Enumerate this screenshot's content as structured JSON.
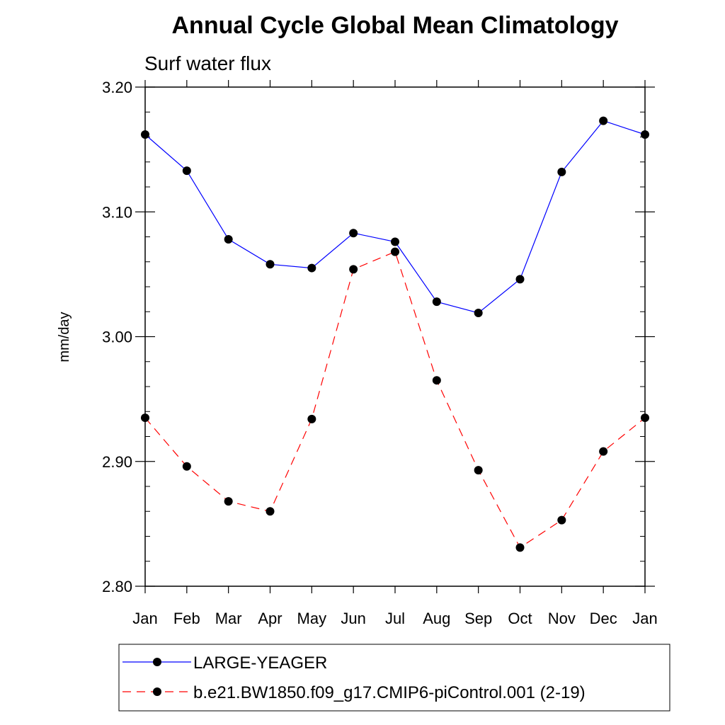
{
  "chart_data": {
    "type": "line",
    "title": "Annual Cycle Global Mean Climatology",
    "subtitle": "Surf water flux",
    "xlabel": "",
    "ylabel": "mm/day",
    "ylim": [
      2.8,
      3.2
    ],
    "yticks": [
      "2.80",
      "2.90",
      "3.00",
      "3.10",
      "3.20"
    ],
    "categories": [
      "Jan",
      "Feb",
      "Mar",
      "Apr",
      "May",
      "Jun",
      "Jul",
      "Aug",
      "Sep",
      "Oct",
      "Nov",
      "Dec",
      "Jan"
    ],
    "grid": false,
    "legend_position": "bottom",
    "series": [
      {
        "name": "LARGE-YEAGER",
        "color": "#0000ff",
        "dash": "solid",
        "marker": "filled-circle",
        "values": [
          3.162,
          3.133,
          3.078,
          3.058,
          3.055,
          3.083,
          3.076,
          3.028,
          3.019,
          3.046,
          3.132,
          3.173,
          3.162
        ]
      },
      {
        "name": "b.e21.BW1850.f09_g17.CMIP6-piControl.001 (2-19)",
        "color": "#ff0000",
        "dash": "dashed",
        "marker": "filled-circle",
        "values": [
          2.935,
          2.896,
          2.868,
          2.86,
          2.934,
          3.054,
          3.068,
          2.965,
          2.893,
          2.831,
          2.853,
          2.908,
          2.935
        ]
      }
    ]
  }
}
